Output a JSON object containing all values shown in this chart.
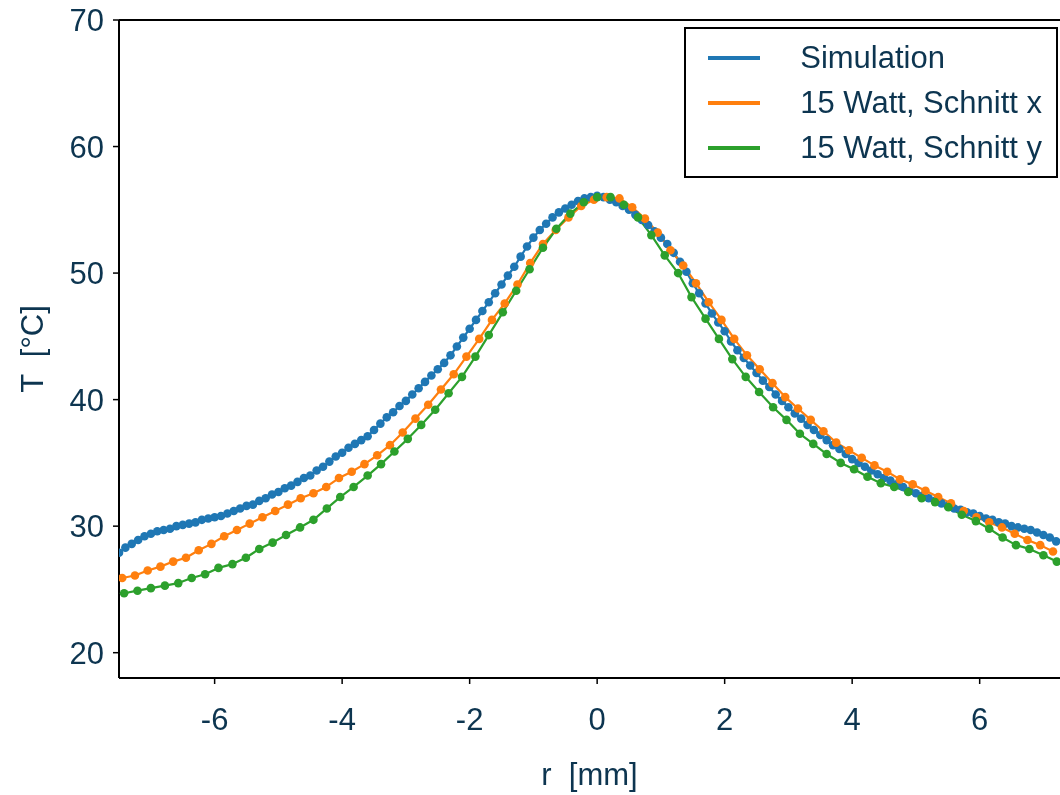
{
  "chart_data": {
    "type": "line",
    "xlabel": "r  [mm]",
    "ylabel": "T  [°C]",
    "xlim": [
      -7.5,
      7.26
    ],
    "ylim": [
      18,
      70
    ],
    "xticks": [
      -6,
      -4,
      -2,
      0,
      2,
      4,
      6
    ],
    "yticks": [
      20,
      30,
      40,
      50,
      60,
      70
    ],
    "legend": "top right",
    "marker": "circle",
    "line_style": "solid",
    "series": [
      {
        "name": "Simulation",
        "color": "#1f77b4",
        "x": [
          -7.5,
          -7.4,
          -7.3,
          -7.2,
          -7.1,
          -7,
          -6.9,
          -6.8,
          -6.7,
          -6.6,
          -6.5,
          -6.4,
          -6.3,
          -6.2,
          -6.1,
          -6,
          -5.9,
          -5.8,
          -5.7,
          -5.6,
          -5.5,
          -5.4,
          -5.3,
          -5.2,
          -5.1,
          -5,
          -4.9,
          -4.8,
          -4.7,
          -4.6,
          -4.5,
          -4.4,
          -4.3,
          -4.2,
          -4.1,
          -4,
          -3.9,
          -3.8,
          -3.7,
          -3.6,
          -3.5,
          -3.4,
          -3.3,
          -3.2,
          -3.1,
          -3,
          -2.9,
          -2.8,
          -2.7,
          -2.6,
          -2.5,
          -2.4,
          -2.3,
          -2.2,
          -2.1,
          -2,
          -1.9,
          -1.8,
          -1.7,
          -1.6,
          -1.5,
          -1.4,
          -1.3,
          -1.2,
          -1.1,
          -1,
          -0.9,
          -0.8,
          -0.7,
          -0.6,
          -0.5,
          -0.4,
          -0.3,
          -0.2,
          -0.1,
          0,
          0.1,
          0.2,
          0.3,
          0.4,
          0.5,
          0.6,
          0.7,
          0.8,
          0.9,
          1,
          1.1,
          1.2,
          1.3,
          1.4,
          1.5,
          1.6,
          1.7,
          1.8,
          1.9,
          2,
          2.1,
          2.2,
          2.3,
          2.4,
          2.5,
          2.6,
          2.7,
          2.8,
          2.9,
          3,
          3.1,
          3.2,
          3.3,
          3.4,
          3.5,
          3.6,
          3.7,
          3.8,
          3.9,
          4,
          4.1,
          4.2,
          4.3,
          4.4,
          4.5,
          4.6,
          4.7,
          4.8,
          4.9,
          5,
          5.1,
          5.2,
          5.3,
          5.4,
          5.5,
          5.6,
          5.7,
          5.8,
          5.9,
          6,
          6.1,
          6.2,
          6.3,
          6.4,
          6.5,
          6.6,
          6.7,
          6.8,
          6.9,
          7,
          7.1,
          7.2
        ],
        "values": [
          27.9,
          28.3,
          28.6,
          28.9,
          29.2,
          29.4,
          29.6,
          29.7,
          29.8,
          30.0,
          30.1,
          30.2,
          30.3,
          30.5,
          30.6,
          30.7,
          30.8,
          31.0,
          31.2,
          31.4,
          31.6,
          31.7,
          32.0,
          32.2,
          32.5,
          32.7,
          33.0,
          33.2,
          33.5,
          33.8,
          34.0,
          34.4,
          34.7,
          35.1,
          35.5,
          35.8,
          36.2,
          36.5,
          36.8,
          37.1,
          37.6,
          38.1,
          38.6,
          39.0,
          39.5,
          39.9,
          40.4,
          40.9,
          41.4,
          41.9,
          42.4,
          42.9,
          43.5,
          44.2,
          44.9,
          45.6,
          46.3,
          47.0,
          47.7,
          48.4,
          49.1,
          49.8,
          50.5,
          51.3,
          52.1,
          52.8,
          53.4,
          53.9,
          54.4,
          54.8,
          55.1,
          55.4,
          55.7,
          55.9,
          56.0,
          56.1,
          56.0,
          55.8,
          55.6,
          55.3,
          55.0,
          54.6,
          54.2,
          53.8,
          53.3,
          52.8,
          52.3,
          51.6,
          50.9,
          50.1,
          49.2,
          48.4,
          47.6,
          46.8,
          46.1,
          45.4,
          44.6,
          43.9,
          43.3,
          42.7,
          42.1,
          41.5,
          41.0,
          40.4,
          39.9,
          39.4,
          38.9,
          38.5,
          38.0,
          37.6,
          37.2,
          36.8,
          36.4,
          36.1,
          35.7,
          35.3,
          35.0,
          34.7,
          34.4,
          34.1,
          33.8,
          33.6,
          33.3,
          33.1,
          32.8,
          32.6,
          32.4,
          32.2,
          32.0,
          31.8,
          31.6,
          31.4,
          31.3,
          31.1,
          31.0,
          30.8,
          30.6,
          30.5,
          30.3,
          30.2,
          30.0,
          29.9,
          29.8,
          29.7,
          29.5,
          29.3,
          29.1,
          28.8
        ]
      },
      {
        "name": "15 Watt, Schnitt x",
        "color": "#ff7f0e",
        "x": [
          -7.45,
          -7.25,
          -7.05,
          -6.85,
          -6.65,
          -6.45,
          -6.25,
          -6.05,
          -5.85,
          -5.65,
          -5.45,
          -5.25,
          -5.05,
          -4.85,
          -4.65,
          -4.45,
          -4.25,
          -4.05,
          -3.85,
          -3.65,
          -3.45,
          -3.25,
          -3.05,
          -2.85,
          -2.65,
          -2.45,
          -2.25,
          -2.05,
          -1.85,
          -1.65,
          -1.45,
          -1.25,
          -1.05,
          -0.85,
          -0.65,
          -0.45,
          -0.25,
          -0.05,
          0.15,
          0.35,
          0.55,
          0.75,
          0.95,
          1.15,
          1.35,
          1.55,
          1.75,
          1.95,
          2.15,
          2.35,
          2.55,
          2.75,
          2.95,
          3.15,
          3.35,
          3.55,
          3.75,
          3.95,
          4.15,
          4.35,
          4.55,
          4.75,
          4.95,
          5.15,
          5.35,
          5.55,
          5.75,
          5.95,
          6.15,
          6.35,
          6.55,
          6.75,
          6.95,
          7.15
        ],
        "values": [
          25.9,
          26.1,
          26.5,
          26.8,
          27.2,
          27.5,
          28.1,
          28.6,
          29.2,
          29.7,
          30.2,
          30.7,
          31.2,
          31.7,
          32.2,
          32.6,
          33.1,
          33.8,
          34.3,
          34.9,
          35.6,
          36.4,
          37.4,
          38.5,
          39.6,
          40.8,
          42.0,
          43.4,
          44.8,
          46.3,
          47.6,
          49.1,
          50.8,
          52.3,
          53.4,
          54.4,
          55.3,
          55.8,
          56.0,
          55.9,
          55.2,
          54.3,
          53.2,
          51.8,
          50.6,
          49.2,
          47.7,
          46.3,
          44.8,
          43.5,
          42.4,
          41.3,
          40.2,
          39.3,
          38.4,
          37.5,
          36.6,
          36.0,
          35.4,
          34.8,
          34.3,
          33.7,
          33.3,
          32.8,
          32.3,
          31.8,
          31.2,
          30.7,
          30.3,
          29.9,
          29.4,
          28.9,
          28.5,
          28.0
        ]
      },
      {
        "name": "15 Watt, Schnitt y",
        "color": "#2ca02c",
        "x": [
          -7.42,
          -7.21,
          -7.0,
          -6.78,
          -6.57,
          -6.36,
          -6.15,
          -5.94,
          -5.72,
          -5.51,
          -5.3,
          -5.09,
          -4.88,
          -4.66,
          -4.45,
          -4.24,
          -4.03,
          -3.82,
          -3.6,
          -3.39,
          -3.18,
          -2.97,
          -2.76,
          -2.54,
          -2.33,
          -2.12,
          -1.91,
          -1.7,
          -1.48,
          -1.27,
          -1.06,
          -0.85,
          -0.64,
          -0.42,
          -0.21,
          0,
          0.21,
          0.42,
          0.64,
          0.85,
          1.06,
          1.27,
          1.48,
          1.7,
          1.91,
          2.12,
          2.33,
          2.54,
          2.76,
          2.97,
          3.18,
          3.39,
          3.6,
          3.82,
          4.03,
          4.24,
          4.45,
          4.66,
          4.88,
          5.09,
          5.3,
          5.51,
          5.72,
          5.94,
          6.15,
          6.36,
          6.57,
          6.78,
          7.0,
          7.21
        ],
        "values": [
          24.7,
          24.9,
          25.1,
          25.3,
          25.5,
          25.9,
          26.2,
          26.7,
          27.0,
          27.5,
          28.2,
          28.7,
          29.3,
          29.9,
          30.5,
          31.4,
          32.3,
          33.1,
          34.0,
          34.9,
          35.9,
          36.9,
          38.0,
          39.2,
          40.5,
          41.8,
          43.4,
          45.1,
          46.9,
          48.6,
          50.3,
          52.0,
          53.5,
          54.7,
          55.6,
          56.0,
          56.0,
          55.4,
          54.4,
          53.0,
          51.4,
          50.0,
          48.1,
          46.4,
          44.8,
          43.2,
          41.8,
          40.6,
          39.4,
          38.4,
          37.3,
          36.5,
          35.7,
          35.0,
          34.5,
          33.9,
          33.4,
          33.1,
          32.7,
          32.2,
          31.9,
          31.5,
          30.9,
          30.4,
          29.8,
          29.1,
          28.5,
          28.2,
          27.7,
          27.2
        ]
      }
    ]
  }
}
